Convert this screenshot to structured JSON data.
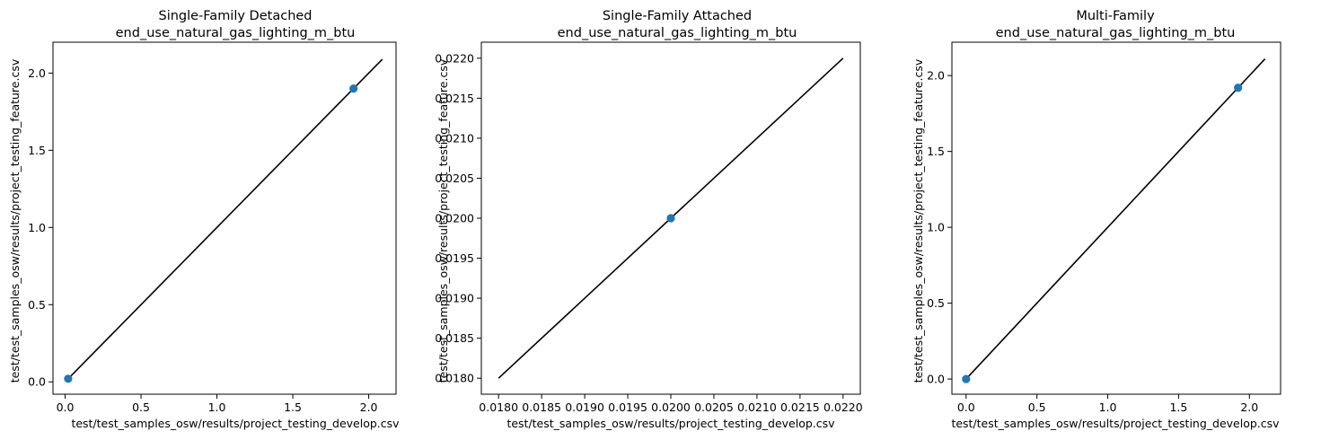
{
  "colors": {
    "marker": "#1f77b4",
    "identity_line": "#000000",
    "axes": "#000000",
    "background": "#ffffff"
  },
  "chart_data": [
    {
      "type": "scatter",
      "title": "Single-Family Detached",
      "subtitle": "end_use_natural_gas_lighting_m_btu",
      "xlabel": "test/test_samples_osw/results/project_testing_develop.csv",
      "ylabel": "test/test_samples_osw/results/project_testing_feature.csv",
      "xlim": [
        -0.08,
        2.18
      ],
      "ylim": [
        -0.08,
        2.2
      ],
      "xticks": [
        0.0,
        0.5,
        1.0,
        1.5,
        2.0
      ],
      "xtick_labels": [
        "0.0",
        "0.5",
        "1.0",
        "1.5",
        "2.0"
      ],
      "yticks": [
        0.0,
        0.5,
        1.0,
        1.5,
        2.0
      ],
      "ytick_labels": [
        "0.0",
        "0.5",
        "1.0",
        "1.5",
        "2.0"
      ],
      "points": [
        {
          "x": 0.02,
          "y": 0.02
        },
        {
          "x": 1.9,
          "y": 1.9
        }
      ],
      "identity_line": {
        "from": 0.02,
        "to": 2.09
      }
    },
    {
      "type": "scatter",
      "title": "Single-Family Attached",
      "subtitle": "end_use_natural_gas_lighting_m_btu",
      "xlabel": "test/test_samples_osw/results/project_testing_develop.csv",
      "ylabel": "test/test_samples_osw/results/project_testing_feature.csv",
      "xlim": [
        0.0178,
        0.0222
      ],
      "ylim": [
        0.0178,
        0.0222
      ],
      "xticks": [
        0.018,
        0.0185,
        0.019,
        0.0195,
        0.02,
        0.0205,
        0.021,
        0.0215,
        0.022
      ],
      "xtick_labels": [
        "0.0180",
        "0.0185",
        "0.0190",
        "0.0195",
        "0.0200",
        "0.0205",
        "0.0210",
        "0.0215",
        "0.0220"
      ],
      "yticks": [
        0.018,
        0.0185,
        0.019,
        0.0195,
        0.02,
        0.0205,
        0.021,
        0.0215,
        0.022
      ],
      "ytick_labels": [
        "0.0180",
        "0.0185",
        "0.0190",
        "0.0195",
        "0.0200",
        "0.0205",
        "0.0210",
        "0.0215",
        "0.0220"
      ],
      "points": [
        {
          "x": 0.02,
          "y": 0.02
        }
      ],
      "identity_line": {
        "from": 0.018,
        "to": 0.022
      }
    },
    {
      "type": "scatter",
      "title": "Multi-Family",
      "subtitle": "end_use_natural_gas_lighting_m_btu",
      "xlabel": "test/test_samples_osw/results/project_testing_develop.csv",
      "ylabel": "test/test_samples_osw/results/project_testing_feature.csv",
      "xlim": [
        -0.1,
        2.22
      ],
      "ylim": [
        -0.1,
        2.22
      ],
      "xticks": [
        0.0,
        0.5,
        1.0,
        1.5,
        2.0
      ],
      "xtick_labels": [
        "0.0",
        "0.5",
        "1.0",
        "1.5",
        "2.0"
      ],
      "yticks": [
        0.0,
        0.5,
        1.0,
        1.5,
        2.0
      ],
      "ytick_labels": [
        "0.0",
        "0.5",
        "1.0",
        "1.5",
        "2.0"
      ],
      "points": [
        {
          "x": 0.0,
          "y": 0.0
        },
        {
          "x": 1.92,
          "y": 1.92
        }
      ],
      "identity_line": {
        "from": 0.0,
        "to": 2.11
      }
    }
  ]
}
